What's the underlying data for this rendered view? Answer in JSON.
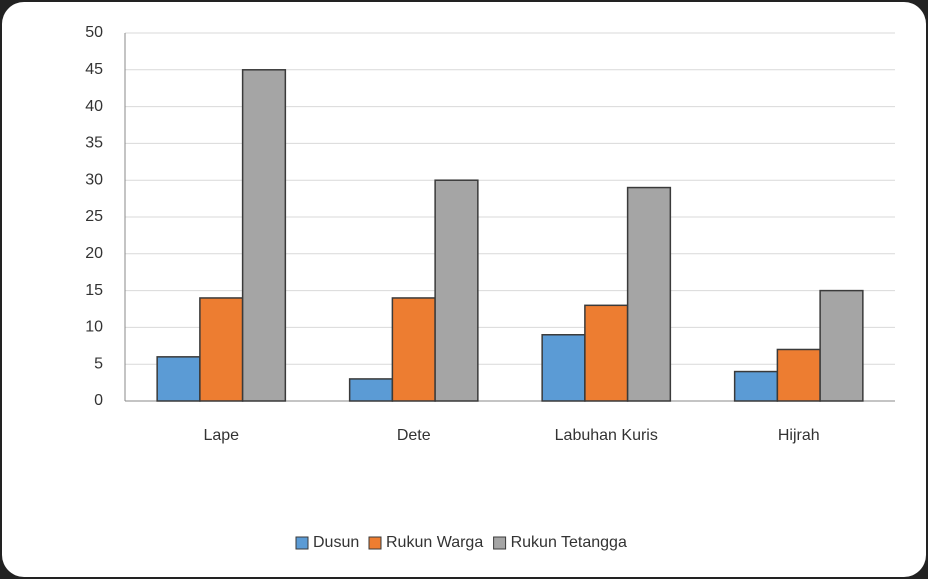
{
  "chart_data": {
    "type": "bar",
    "categories": [
      "Lape",
      "Dete",
      "Labuhan Kuris",
      "Hijrah"
    ],
    "series": [
      {
        "name": "Dusun",
        "color": "#5b9bd5",
        "values": [
          6,
          3,
          9,
          4
        ]
      },
      {
        "name": "Rukun Warga",
        "color": "#ed7d31",
        "values": [
          14,
          14,
          13,
          7
        ]
      },
      {
        "name": "Rukun Tetangga",
        "color": "#a5a5a5",
        "values": [
          45,
          30,
          29,
          15
        ]
      }
    ],
    "ylim": [
      0,
      50
    ],
    "yticks": [
      0,
      5,
      10,
      15,
      20,
      25,
      30,
      35,
      40,
      45,
      50
    ],
    "grid": true,
    "legend": "bottom"
  }
}
